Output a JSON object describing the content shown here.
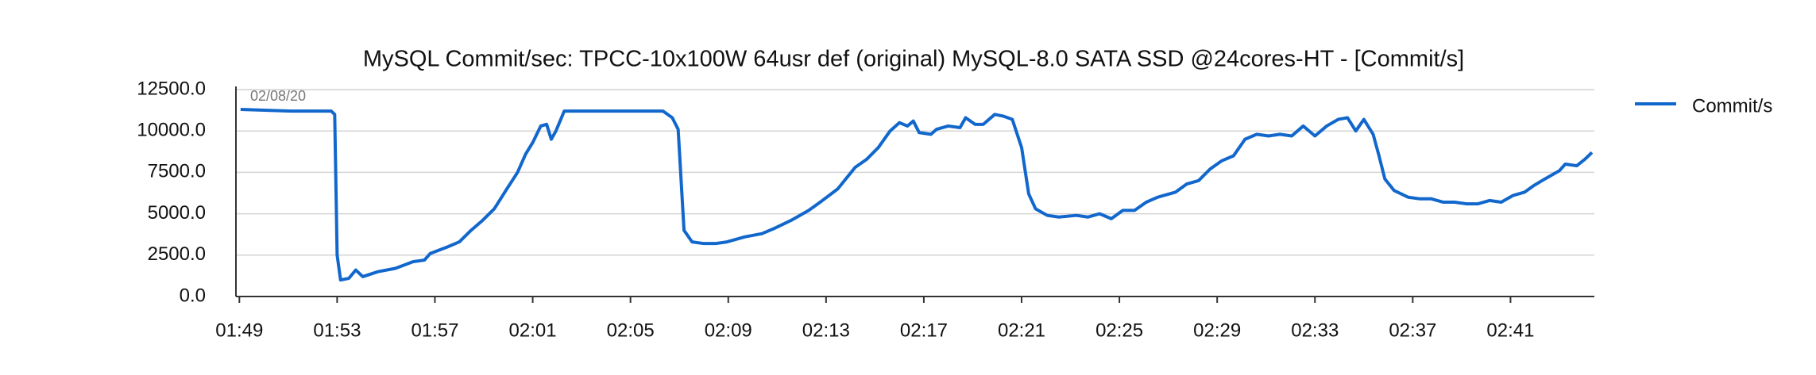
{
  "chart_data": {
    "type": "line",
    "title": "MySQL Commit/sec: TPCC-10x100W 64usr def (original) MySQL-8.0 SATA SSD @24cores-HT - [Commit/s]",
    "annotation": "02/08/20",
    "x": [
      109.05,
      111.1,
      112.76,
      112.9,
      113.0,
      113.14,
      113.48,
      113.76,
      114.05,
      114.67,
      115.38,
      116.1,
      116.57,
      116.81,
      117.52,
      118.0,
      118.48,
      118.95,
      119.43,
      119.9,
      120.38,
      120.71,
      121.0,
      121.33,
      121.57,
      121.76,
      121.95,
      122.29,
      123.0,
      124.43,
      126.33,
      126.71,
      126.95,
      127.19,
      127.52,
      128.0,
      128.48,
      128.95,
      129.67,
      130.38,
      130.86,
      131.57,
      132.29,
      132.76,
      133.48,
      134.19,
      134.67,
      135.14,
      135.62,
      136.0,
      136.33,
      136.57,
      136.81,
      137.29,
      137.52,
      138.0,
      138.48,
      138.71,
      139.1,
      139.43,
      139.9,
      140.24,
      140.62,
      141.0,
      141.29,
      141.57,
      142.05,
      142.52,
      143.24,
      143.71,
      144.19,
      144.67,
      145.14,
      145.62,
      146.1,
      146.57,
      147.29,
      147.76,
      148.24,
      148.71,
      149.19,
      149.67,
      150.14,
      150.62,
      151.1,
      151.57,
      152.05,
      152.52,
      153.0,
      153.48,
      153.95,
      154.33,
      154.67,
      155.0,
      155.38,
      155.62,
      155.86,
      156.24,
      156.81,
      157.29,
      157.76,
      158.24,
      158.71,
      159.19,
      159.67,
      160.14,
      160.62,
      161.1,
      161.57,
      161.95,
      162.29,
      162.76,
      163.0,
      163.24,
      163.71,
      164.05,
      164.33
    ],
    "series": [
      {
        "name": "Commit/s",
        "color": "#1167cc",
        "values": [
          11300,
          11200,
          11200,
          11000,
          2500,
          1000,
          1100,
          1600,
          1200,
          1500,
          1700,
          2100,
          2200,
          2600,
          3000,
          3300,
          4000,
          4600,
          5300,
          6400,
          7500,
          8600,
          9300,
          10300,
          10400,
          9500,
          10000,
          11200,
          11200,
          11200,
          11200,
          10800,
          10100,
          4000,
          3300,
          3200,
          3200,
          3300,
          3600,
          3800,
          4100,
          4600,
          5200,
          5700,
          6500,
          7800,
          8300,
          9000,
          10000,
          10500,
          10300,
          10600,
          9900,
          9800,
          10100,
          10300,
          10200,
          10800,
          10400,
          10400,
          11000,
          10900,
          10700,
          9000,
          6200,
          5300,
          4900,
          4800,
          4900,
          4800,
          5000,
          4700,
          5200,
          5200,
          5700,
          6000,
          6300,
          6800,
          7000,
          7700,
          8200,
          8500,
          9500,
          9800,
          9700,
          9800,
          9700,
          10300,
          9700,
          10300,
          10700,
          10800,
          10000,
          10700,
          9800,
          8500,
          7100,
          6400,
          6000,
          5900,
          5900,
          5700,
          5700,
          5600,
          5600,
          5800,
          5700,
          6100,
          6300,
          6700,
          7000,
          7400,
          7600,
          8000,
          7900,
          8300,
          8700
        ]
      }
    ],
    "xlim": [
      108.86,
      164.43
    ],
    "xticks": [
      {
        "value": 109,
        "label": "01:49"
      },
      {
        "value": 113,
        "label": "01:53"
      },
      {
        "value": 117,
        "label": "01:57"
      },
      {
        "value": 121,
        "label": "02:01"
      },
      {
        "value": 125,
        "label": "02:05"
      },
      {
        "value": 129,
        "label": "02:09"
      },
      {
        "value": 133,
        "label": "02:13"
      },
      {
        "value": 137,
        "label": "02:17"
      },
      {
        "value": 141,
        "label": "02:21"
      },
      {
        "value": 145,
        "label": "02:25"
      },
      {
        "value": 149,
        "label": "02:29"
      },
      {
        "value": 153,
        "label": "02:33"
      },
      {
        "value": 157,
        "label": "02:37"
      },
      {
        "value": 161,
        "label": "02:41"
      }
    ],
    "ylim": [
      0,
      12500
    ],
    "yticks": [
      {
        "value": 0,
        "label": "0.0"
      },
      {
        "value": 2500,
        "label": "2500.0"
      },
      {
        "value": 5000,
        "label": "5000.0"
      },
      {
        "value": 7500,
        "label": "7500.0"
      },
      {
        "value": 10000,
        "label": "10000.0"
      },
      {
        "value": 12500,
        "label": "12500.0"
      }
    ],
    "grid": true
  }
}
